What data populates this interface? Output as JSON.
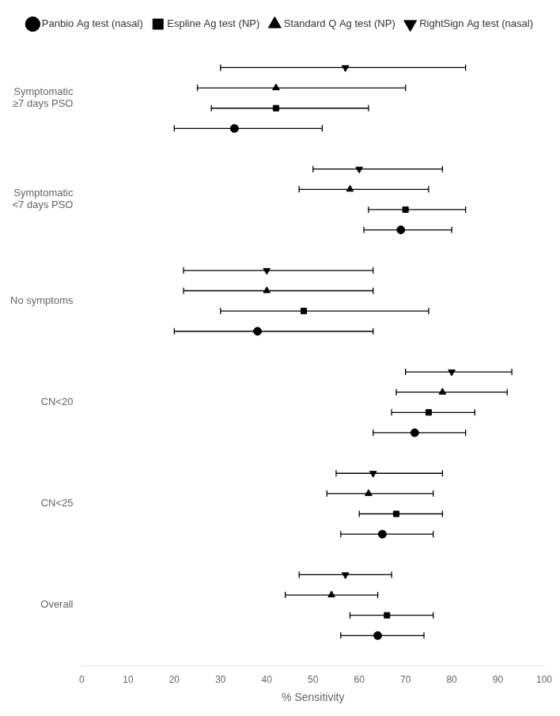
{
  "chart_data": {
    "type": "forest",
    "xlabel": "% Sensitivity",
    "categories": [
      "Symptomatic\n≥7 days PSO",
      "Symptomatic\n<7 days PSO",
      "No symptoms",
      "CN<20",
      "CN<25",
      "Overall"
    ],
    "xlim": [
      0,
      100
    ],
    "xticks": [
      0,
      10,
      20,
      30,
      40,
      50,
      60,
      70,
      80,
      90,
      100
    ],
    "grid": false,
    "legend": "upper right",
    "color": "black",
    "series": [
      {
        "name": "Panbio Ag test (nasal)",
        "marker": "circle",
        "values": [
          33,
          69,
          38,
          72,
          65,
          64
        ],
        "lo": [
          20,
          61,
          20,
          63,
          56,
          56
        ],
        "hi": [
          52,
          80,
          63,
          83,
          76,
          74
        ]
      },
      {
        "name": "Espline Ag test (NP)",
        "marker": "square",
        "values": [
          42,
          70,
          48,
          75,
          68,
          66
        ],
        "lo": [
          28,
          62,
          30,
          67,
          60,
          58
        ],
        "hi": [
          62,
          83,
          75,
          85,
          78,
          76
        ]
      },
      {
        "name": "Standard Q Ag test (NP)",
        "marker": "triangle_up",
        "values": [
          42,
          58,
          40,
          78,
          62,
          54
        ],
        "lo": [
          25,
          47,
          22,
          68,
          53,
          44
        ],
        "hi": [
          70,
          75,
          63,
          92,
          76,
          64
        ]
      },
      {
        "name": "RightSign Ag test (nasal)",
        "marker": "triangle_down",
        "values": [
          57,
          60,
          40,
          80,
          63,
          57
        ],
        "lo": [
          30,
          50,
          22,
          70,
          55,
          47
        ],
        "hi": [
          83,
          78,
          63,
          93,
          78,
          67
        ]
      }
    ]
  }
}
